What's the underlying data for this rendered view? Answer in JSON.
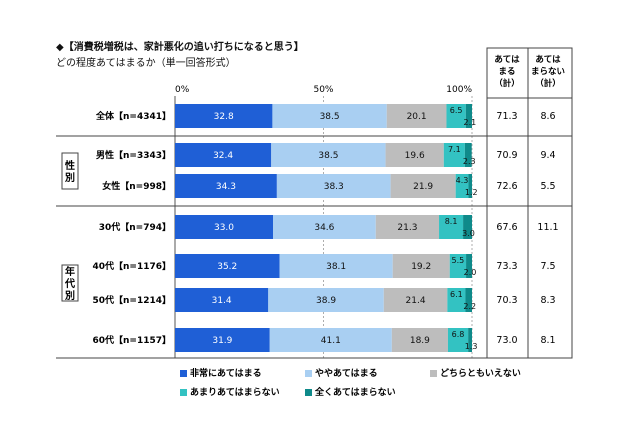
{
  "title_line1": "◆【消費税増税は、家計悪化の追い打ちになると思う】",
  "title_line2": "どの程度あてはまるか（単一回答形式）",
  "chart_data": {
    "type": "bar",
    "stacked": true,
    "orientation": "horizontal",
    "axis_ticks": [
      "0%",
      "50%",
      "100%"
    ],
    "xlim": [
      0,
      100
    ],
    "rows": [
      {
        "label": "全体【n=4341】"
      },
      {
        "label": "男性【n=3343】"
      },
      {
        "label": "女性【n=998】"
      },
      {
        "label": "30代【n=794】"
      },
      {
        "label": "40代【n=1176】"
      },
      {
        "label": "50代【n=1214】"
      },
      {
        "label": "60代【n=1157】"
      }
    ],
    "groups": [
      {
        "label": "性別",
        "rows": [
          1,
          2
        ]
      },
      {
        "label": "年代別",
        "rows": [
          3,
          4,
          5,
          6
        ]
      }
    ],
    "series": [
      {
        "name": "非常にあてはまる",
        "color": "#1f5fd6",
        "values": [
          32.8,
          32.4,
          34.3,
          33.0,
          35.2,
          31.4,
          31.9
        ]
      },
      {
        "name": "ややあてはまる",
        "color": "#a9cff2",
        "values": [
          38.5,
          38.5,
          38.3,
          34.6,
          38.1,
          38.9,
          41.1
        ]
      },
      {
        "name": "どちらともいえない",
        "color": "#bdbdbd",
        "values": [
          20.1,
          19.6,
          21.9,
          21.3,
          19.2,
          21.4,
          18.9
        ]
      },
      {
        "name": "あまりあてはまらない",
        "color": "#33c2c2",
        "values": [
          6.5,
          7.1,
          4.3,
          8.1,
          5.5,
          6.1,
          6.8
        ]
      },
      {
        "name": "全くあてはまらない",
        "color": "#0f8a8a",
        "values": [
          2.1,
          2.3,
          1.2,
          3.0,
          2.0,
          2.2,
          1.3
        ]
      }
    ],
    "extra_columns": [
      {
        "header": [
          "あては",
          "まる",
          "（計）"
        ],
        "values": [
          "71.3",
          "70.9",
          "72.6",
          "67.6",
          "73.3",
          "70.3",
          "73.0"
        ]
      },
      {
        "header": [
          "あては",
          "まらない",
          "（計）"
        ],
        "values": [
          "8.6",
          "9.4",
          "5.5",
          "11.1",
          "7.5",
          "8.3",
          "8.1"
        ]
      }
    ]
  }
}
